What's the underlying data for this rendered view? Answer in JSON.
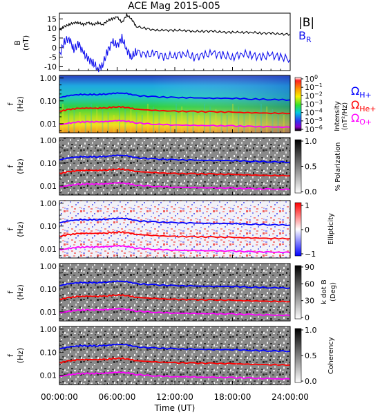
{
  "title": "ACE Mag 2015-005",
  "colors": {
    "bmag": "#000000",
    "br": "#1010ee",
    "h_plus": "#0000ff",
    "he_plus": "#ff0000",
    "o_plus": "#ff00ff"
  },
  "legend": {
    "bmag": "|B|",
    "br": "B",
    "br_sub": "R",
    "h_main": "Ω",
    "h_sub": "H+",
    "he_main": "Ω",
    "he_sub": "He+",
    "o_main": "Ω",
    "o_sub": "O+"
  },
  "top_panel": {
    "ylabel_1": "B",
    "ylabel_2": "(nT)",
    "yticks": [
      "15",
      "10",
      "5",
      "0",
      "-5",
      "-10"
    ]
  },
  "freq_axis": {
    "ylabel_1": "f",
    "ylabel_2": "(Hz)",
    "ticks": [
      "1.00",
      "0.10",
      "0.01"
    ]
  },
  "colorbars": {
    "intensity": {
      "label_1": "Intensity",
      "label_2": "(nT²/Hz)",
      "ticks_base": [
        "10",
        "10",
        "10",
        "10",
        "10",
        "10",
        "10"
      ],
      "ticks_exp": [
        "0",
        "−1",
        "−2",
        "−3",
        "−4",
        "−5",
        "−6"
      ]
    },
    "polarization": {
      "label": "% Polarization",
      "ticks": [
        "1.0",
        "0.5",
        "0.0"
      ]
    },
    "ellipticity": {
      "label": "Ellipticity",
      "ticks": [
        "1",
        "0",
        "−1"
      ]
    },
    "kdotb": {
      "label_1": "k dot B",
      "label_2": "(Deg)",
      "ticks": [
        "90",
        "60",
        "30",
        "0"
      ]
    },
    "coherency": {
      "label": "Coherency",
      "ticks": [
        "1.0",
        "0.5",
        "0.0"
      ]
    }
  },
  "xaxis": {
    "label": "Time (UT)",
    "ticks": [
      "00:00:00",
      "06:00:00",
      "12:00:00",
      "18:00:00",
      "24:00:00"
    ]
  },
  "chart_data": {
    "type": "line",
    "title": "ACE Mag 2015-005",
    "x_unit": "hours UT",
    "xlim": [
      0,
      24
    ],
    "panels": [
      {
        "name": "B",
        "ylabel": "B (nT)",
        "ylim": [
          -12,
          18
        ],
        "series": [
          {
            "name": "|B|",
            "x": [
              0.0,
              0.5,
              1,
              1.5,
              2,
              2.5,
              3,
              3.5,
              4,
              4.5,
              5,
              5.5,
              6,
              6.5,
              7,
              7.5,
              8,
              9,
              10,
              11,
              12,
              13,
              14,
              15,
              16,
              17,
              18,
              19,
              20,
              21,
              22,
              23,
              24
            ],
            "values": [
              9,
              11,
              12,
              13,
              13,
              12,
              13,
              12,
              13,
              12,
              14,
              15,
              16,
              13,
              17,
              15,
              11,
              10,
              9,
              9,
              9,
              9,
              8.5,
              8.5,
              8.5,
              8,
              8,
              8,
              8,
              7.5,
              7.5,
              7,
              7
            ]
          },
          {
            "name": "B_R",
            "x": [
              0.0,
              0.5,
              1,
              1.5,
              2,
              2.5,
              3,
              3.5,
              4,
              4.5,
              5,
              5.5,
              6,
              6.5,
              7,
              7.5,
              8,
              9,
              10,
              11,
              12,
              13,
              14,
              15,
              16,
              17,
              18,
              19,
              20,
              21,
              22,
              23,
              24
            ],
            "values": [
              -4,
              3,
              5,
              -1,
              2,
              -3,
              -6,
              -8,
              -11,
              -9,
              -2,
              3,
              1,
              5,
              -1,
              -5,
              -2,
              -4,
              -3,
              -5,
              -4,
              -3,
              -5,
              -4,
              -3,
              -4,
              -5,
              -3,
              -4,
              -5,
              -4,
              -5,
              -6
            ]
          }
        ]
      },
      {
        "name": "gyrofrequencies",
        "ylabel": "f (Hz)",
        "yscale": "log",
        "ylim": [
          0.004,
          1.3
        ],
        "series": [
          {
            "name": "Ω H+",
            "x": [
              0,
              1,
              2,
              3,
              4,
              5,
              6,
              7,
              8,
              10,
              12,
              14,
              16,
              18,
              20,
              22,
              24
            ],
            "values": [
              0.14,
              0.17,
              0.19,
              0.19,
              0.19,
              0.2,
              0.22,
              0.21,
              0.17,
              0.15,
              0.14,
              0.135,
              0.13,
              0.13,
              0.12,
              0.115,
              0.11
            ]
          },
          {
            "name": "Ω He+",
            "x": [
              0,
              1,
              2,
              3,
              4,
              5,
              6,
              7,
              8,
              10,
              12,
              14,
              16,
              18,
              20,
              22,
              24
            ],
            "values": [
              0.035,
              0.042,
              0.047,
              0.048,
              0.048,
              0.05,
              0.055,
              0.052,
              0.043,
              0.038,
              0.035,
              0.034,
              0.033,
              0.032,
              0.03,
              0.029,
              0.028
            ]
          },
          {
            "name": "Ω O+",
            "x": [
              0,
              1,
              2,
              3,
              4,
              5,
              6,
              7,
              8,
              10,
              12,
              14,
              16,
              18,
              20,
              22,
              24
            ],
            "values": [
              0.009,
              0.0105,
              0.0118,
              0.012,
              0.012,
              0.0125,
              0.0138,
              0.013,
              0.0108,
              0.0095,
              0.0088,
              0.0085,
              0.0082,
              0.008,
              0.0075,
              0.0072,
              0.007
            ]
          }
        ]
      }
    ],
    "spectrogram_panels": [
      "Intensity (nT²/Hz)",
      "% Polarization",
      "Ellipticity",
      "k dot B (Deg)",
      "Coherency"
    ],
    "colorbar_ranges": {
      "Intensity": [
        1e-06,
        1
      ],
      "% Polarization": [
        0,
        1
      ],
      "Ellipticity": [
        -1,
        1
      ],
      "k dot B": [
        0,
        90
      ],
      "Coherency": [
        0,
        1
      ]
    }
  }
}
